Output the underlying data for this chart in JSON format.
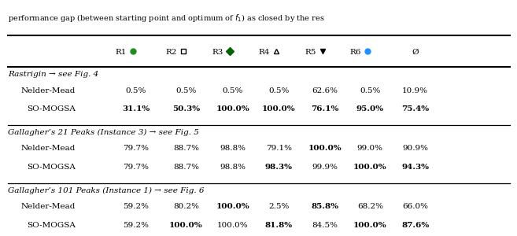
{
  "title": "performance gap (between starting point and optimum of $f_1$) as closed by the res",
  "header_labels": [
    "R1",
    "R2",
    "R3",
    "R4",
    "R5",
    "R6",
    "Ø"
  ],
  "marker_styles": [
    "o",
    "s",
    "D",
    "^",
    "v",
    "o"
  ],
  "marker_edge_colors": [
    "#228B22",
    "#000000",
    "#006400",
    "#000000",
    "#000000",
    "#1E90FF"
  ],
  "marker_face_colors": [
    "#228B22",
    "none",
    "#006400",
    "none",
    "#000000",
    "#1E90FF"
  ],
  "sections": [
    {
      "title": "Rastrigin → see Fig. 4",
      "rows": [
        {
          "label": "Nelder-Mead",
          "values": [
            "0.5%",
            "0.5%",
            "0.5%",
            "0.5%",
            "62.6%",
            "0.5%",
            "10.9%"
          ],
          "bold": [
            false,
            false,
            false,
            false,
            false,
            false,
            false
          ]
        },
        {
          "label": "SO-MOGSA",
          "values": [
            "31.1%",
            "50.3%",
            "100.0%",
            "100.0%",
            "76.1%",
            "95.0%",
            "75.4%"
          ],
          "bold": [
            true,
            true,
            true,
            true,
            true,
            true,
            true
          ]
        }
      ]
    },
    {
      "title": "Gallagher’s 21 Peaks (Instance 3) → see Fig. 5",
      "rows": [
        {
          "label": "Nelder-Mead",
          "values": [
            "79.7%",
            "88.7%",
            "98.8%",
            "79.1%",
            "100.0%",
            "99.0%",
            "90.9%"
          ],
          "bold": [
            false,
            false,
            false,
            false,
            true,
            false,
            false
          ]
        },
        {
          "label": "SO-MOGSA",
          "values": [
            "79.7%",
            "88.7%",
            "98.8%",
            "98.3%",
            "99.9%",
            "100.0%",
            "94.3%"
          ],
          "bold": [
            false,
            false,
            false,
            true,
            false,
            true,
            true
          ]
        }
      ]
    },
    {
      "title": "Gallagher’s 101 Peaks (Instance 1) → see Fig. 6",
      "rows": [
        {
          "label": "Nelder-Mead",
          "values": [
            "59.2%",
            "80.2%",
            "100.0%",
            "2.5%",
            "85.8%",
            "68.2%",
            "66.0%"
          ],
          "bold": [
            false,
            false,
            true,
            false,
            true,
            false,
            false
          ]
        },
        {
          "label": "SO-MOGSA",
          "values": [
            "59.2%",
            "100.0%",
            "100.0%",
            "81.8%",
            "84.5%",
            "100.0%",
            "87.6%"
          ],
          "bold": [
            false,
            true,
            false,
            true,
            false,
            true,
            true
          ]
        }
      ]
    }
  ]
}
